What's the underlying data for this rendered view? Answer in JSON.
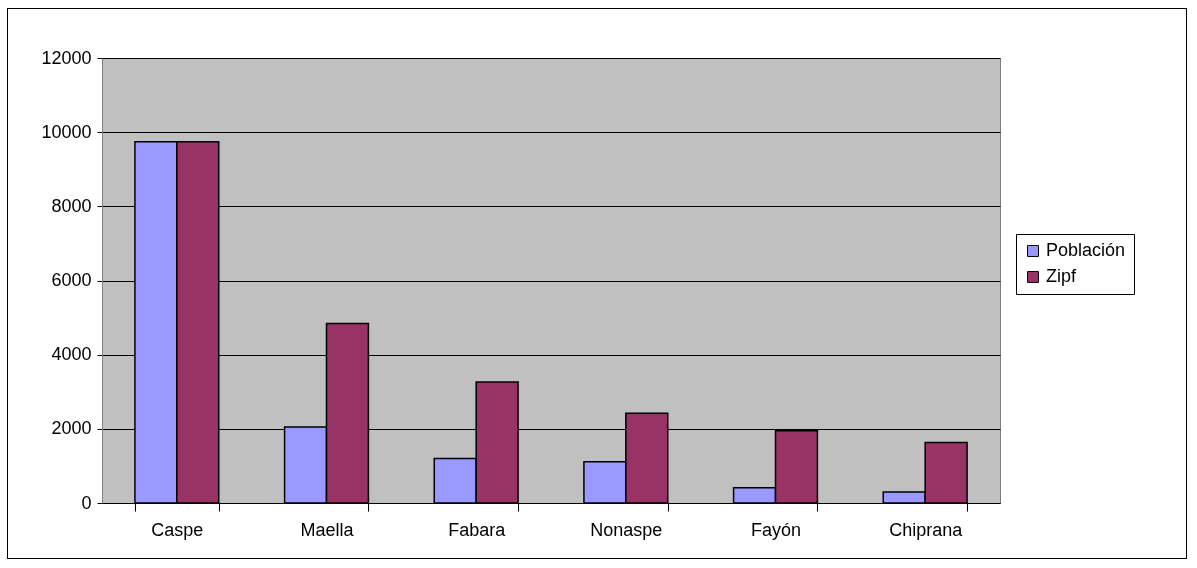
{
  "chart_data": {
    "type": "bar",
    "categories": [
      "Caspe",
      "Maella",
      "Fabara",
      "Nonaspe",
      "Fayón",
      "Chiprana"
    ],
    "series": [
      {
        "name": "Población",
        "color": "#9999ff",
        "values": [
          9740,
          2050,
          1200,
          1110,
          410,
          300
        ]
      },
      {
        "name": "Zipf",
        "color": "#993366",
        "values": [
          9740,
          4840,
          3260,
          2420,
          1950,
          1630
        ]
      }
    ],
    "ylim": [
      0,
      12000
    ],
    "yticks": [
      0,
      2000,
      4000,
      6000,
      8000,
      10000,
      12000
    ],
    "grid": "y",
    "legend": "right"
  }
}
